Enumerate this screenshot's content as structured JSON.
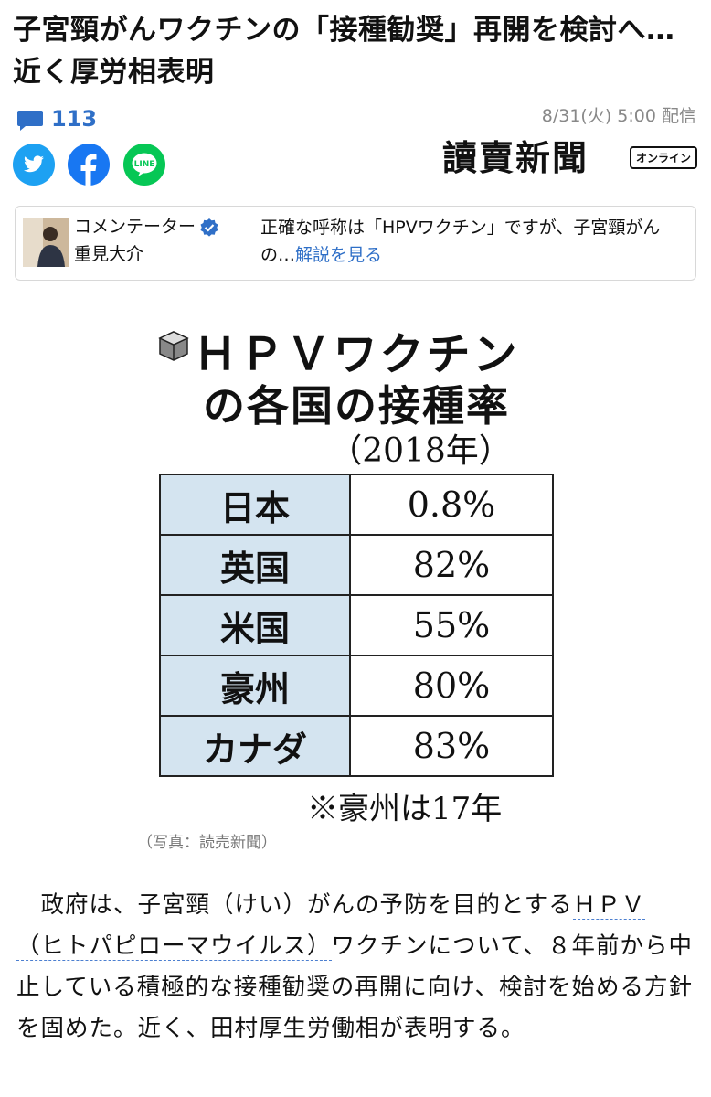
{
  "article": {
    "title": "子宮頸がんワクチンの「接種勧奨」再開を検討へ…近く厚労相表明",
    "comment_count": "113",
    "date": "8/31(火) 5:00 配信",
    "publisher_logo": "讀賣新聞",
    "publisher_badge": "オンライン"
  },
  "share": {
    "twitter_icon": "twitter-icon",
    "facebook_icon": "facebook-icon",
    "line_icon": "line-icon",
    "line_label": "LINE"
  },
  "commentator": {
    "role": "コメンテーター",
    "name": "重見大介",
    "text": "正確な呼称は「HPVワクチン」ですが、子宮頸がんの…",
    "link": "解説を見る"
  },
  "figure": {
    "title_line1": "ＨＰＶワクチン",
    "title_line2": "の各国の接種率",
    "year": "（2018年）",
    "rows": [
      {
        "country": "日本",
        "rate": "0.8%"
      },
      {
        "country": "英国",
        "rate": "82%"
      },
      {
        "country": "米国",
        "rate": "55%"
      },
      {
        "country": "豪州",
        "rate": "80%"
      },
      {
        "country": "カナダ",
        "rate": "83%"
      }
    ],
    "note": "※豪州は17年",
    "caption": "（写真：読売新聞）"
  },
  "body": {
    "part1": "　政府は、子宮頸（けい）がんの予防を目的とする",
    "link_text": "ＨＰＶ（ヒトパピローマウイルス）",
    "part2": "ワクチンについて、８年前から中止している積極的な接種勧奨の再開に向け、検討を始める方針を固めた。近く、田村厚生労働相が表明する。"
  },
  "colors": {
    "accent": "#2f6fc7",
    "twitter": "#1da1f2",
    "facebook": "#1877f2",
    "line": "#06c755",
    "table_header": "#d4e4f0"
  }
}
